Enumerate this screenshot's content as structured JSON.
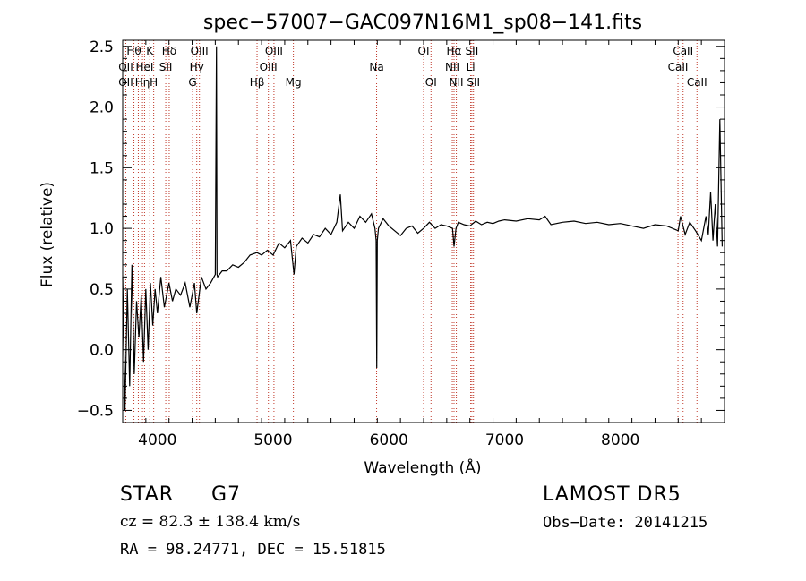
{
  "chart_data": {
    "type": "line",
    "title": "spec−57007−GAC097N16M1_sp08−141.fits",
    "xlabel": "Wavelength (Å)",
    "ylabel": "Flux (relative)",
    "xlim": [
      3700,
      8900
    ],
    "ylim": [
      -0.6,
      2.55
    ],
    "xticks": [
      4000,
      5000,
      6000,
      7000,
      8000
    ],
    "xtick_labels": [
      "4000",
      "5000",
      "6000",
      "7000",
      "8000"
    ],
    "yticks": [
      -0.5,
      0.0,
      0.5,
      1.0,
      1.5,
      2.0,
      2.5
    ],
    "ytick_labels": [
      "−0.5",
      "0.0",
      "0.5",
      "1.0",
      "1.5",
      "2.0",
      "2.5"
    ],
    "grid": false,
    "line_color": "#000000",
    "marker_color": "#c0392b",
    "series": [
      {
        "x": [
          3700,
          3720,
          3740,
          3760,
          3780,
          3800,
          3820,
          3840,
          3860,
          3880,
          3900,
          3920,
          3940,
          3960,
          3980,
          4000,
          4030,
          4060,
          4100,
          4130,
          4160,
          4200,
          4240,
          4280,
          4320,
          4340,
          4380,
          4420,
          4460,
          4500,
          4510,
          4515,
          4520,
          4560,
          4600,
          4650,
          4700,
          4750,
          4800,
          4860,
          4900,
          4950,
          5000,
          5050,
          5100,
          5150,
          5180,
          5200,
          5250,
          5300,
          5350,
          5400,
          5450,
          5500,
          5550,
          5580,
          5600,
          5650,
          5700,
          5750,
          5800,
          5850,
          5880,
          5890,
          5895,
          5900,
          5910,
          5950,
          6000,
          6050,
          6100,
          6150,
          6200,
          6250,
          6300,
          6350,
          6400,
          6450,
          6500,
          6550,
          6563,
          6580,
          6600,
          6650,
          6700,
          6750,
          6800,
          6850,
          6900,
          6950,
          7000,
          7100,
          7200,
          7300,
          7350,
          7400,
          7500,
          7600,
          7700,
          7800,
          7900,
          8000,
          8100,
          8200,
          8300,
          8400,
          8500,
          8520,
          8560,
          8600,
          8650,
          8700,
          8740,
          8760,
          8780,
          8800,
          8820,
          8840,
          8860,
          8880
        ],
        "y": [
          0.6,
          -0.5,
          0.5,
          -0.3,
          0.7,
          -0.2,
          0.4,
          0.1,
          0.45,
          -0.1,
          0.5,
          0.0,
          0.55,
          0.2,
          0.5,
          0.3,
          0.6,
          0.35,
          0.55,
          0.4,
          0.5,
          0.45,
          0.55,
          0.35,
          0.55,
          0.3,
          0.6,
          0.5,
          0.55,
          0.62,
          2.5,
          0.62,
          0.6,
          0.65,
          0.65,
          0.7,
          0.68,
          0.72,
          0.78,
          0.8,
          0.78,
          0.82,
          0.78,
          0.88,
          0.84,
          0.9,
          0.62,
          0.85,
          0.92,
          0.88,
          0.95,
          0.93,
          1.0,
          0.95,
          1.05,
          1.28,
          0.98,
          1.05,
          1.0,
          1.1,
          1.05,
          1.12,
          1.0,
          0.9,
          -0.15,
          0.9,
          1.0,
          1.08,
          1.02,
          0.98,
          0.94,
          1.0,
          1.02,
          0.96,
          1.0,
          1.05,
          1.0,
          1.03,
          1.02,
          1.0,
          0.85,
          1.0,
          1.05,
          1.03,
          1.02,
          1.06,
          1.03,
          1.05,
          1.04,
          1.06,
          1.07,
          1.06,
          1.08,
          1.07,
          1.1,
          1.03,
          1.05,
          1.06,
          1.04,
          1.05,
          1.03,
          1.04,
          1.02,
          1.0,
          1.03,
          1.02,
          0.98,
          1.1,
          0.95,
          1.05,
          0.98,
          0.9,
          1.1,
          0.95,
          1.3,
          0.9,
          1.2,
          0.85,
          1.9,
          0.85
        ]
      }
    ],
    "line_markers": [
      {
        "w": 3797,
        "label": "Hθ",
        "row": 0
      },
      {
        "w": 3727,
        "label": "OII",
        "row": 1
      },
      {
        "w": 3727,
        "label": "OII",
        "row": 2
      },
      {
        "w": 3835,
        "label": "",
        "row": 0
      },
      {
        "w": 3889,
        "label": "HeI",
        "row": 1
      },
      {
        "w": 3871,
        "label": "Hη",
        "row": 2
      },
      {
        "w": 3934,
        "label": "K",
        "row": 0
      },
      {
        "w": 3968,
        "label": "H",
        "row": 2
      },
      {
        "w": 4072,
        "label": "SII",
        "row": 1
      },
      {
        "w": 4102,
        "label": "Hδ",
        "row": 0
      },
      {
        "w": 4304,
        "label": "G",
        "row": 2
      },
      {
        "w": 4340,
        "label": "Hγ",
        "row": 1
      },
      {
        "w": 4363,
        "label": "OIII",
        "row": 0
      },
      {
        "w": 4861,
        "label": "Hβ",
        "row": 2
      },
      {
        "w": 4959,
        "label": "OIII",
        "row": 1
      },
      {
        "w": 5007,
        "label": "OIII",
        "row": 0
      },
      {
        "w": 5175,
        "label": "Mg",
        "row": 2
      },
      {
        "w": 5894,
        "label": "Na",
        "row": 1
      },
      {
        "w": 6300,
        "label": "OI",
        "row": 0
      },
      {
        "w": 6364,
        "label": "OI",
        "row": 2
      },
      {
        "w": 6548,
        "label": "NII",
        "row": 1
      },
      {
        "w": 6563,
        "label": "Hα",
        "row": 0
      },
      {
        "w": 6583,
        "label": "NII",
        "row": 2
      },
      {
        "w": 6707,
        "label": "Li",
        "row": 1
      },
      {
        "w": 6717,
        "label": "SII",
        "row": 0
      },
      {
        "w": 6731,
        "label": "SII",
        "row": 2
      },
      {
        "w": 8498,
        "label": "CaII",
        "row": 1
      },
      {
        "w": 8542,
        "label": "CaII",
        "row": 0
      },
      {
        "w": 8662,
        "label": "CaII",
        "row": 2
      }
    ]
  },
  "info": {
    "class_label": "STAR",
    "subclass": "G7",
    "survey": "LAMOST  DR5",
    "velocity_text": "cz = 82.3 ± 138.4 km/s",
    "obs_date": "Obs−Date: 20141215",
    "coords": "RA =  98.24771, DEC =  15.51815"
  }
}
